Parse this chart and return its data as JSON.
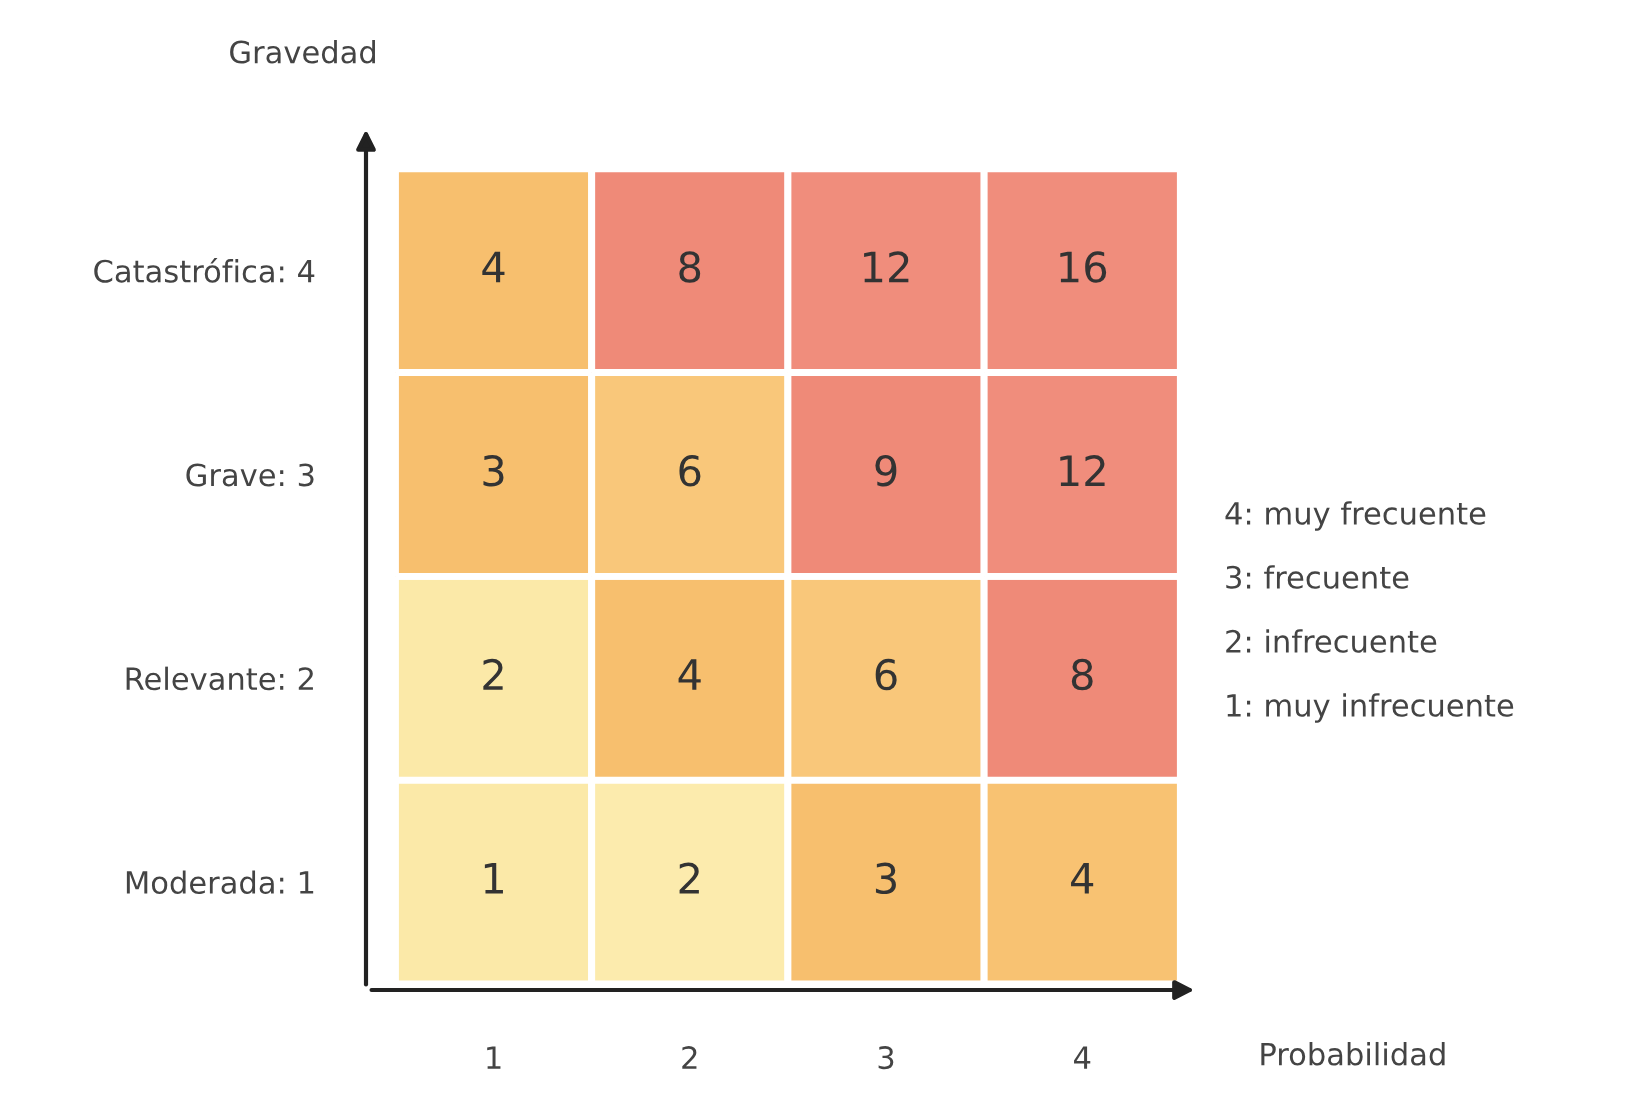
{
  "chart_data": {
    "type": "heatmap",
    "xlabel": "Probabilidad",
    "ylabel": "Gravedad",
    "categories": [
      "1",
      "2",
      "3",
      "4"
    ],
    "y_categories": [
      "Catastrófica: 4",
      "Grave: 3",
      "Relevante: 2",
      "Moderada: 1"
    ],
    "cells": [
      [
        4,
        8,
        12,
        16
      ],
      [
        3,
        6,
        9,
        12
      ],
      [
        2,
        4,
        6,
        8
      ],
      [
        1,
        2,
        3,
        4
      ]
    ],
    "colors": [
      [
        "#f7bf6e",
        "#ef8a78",
        "#f08d7c",
        "#f08d7c"
      ],
      [
        "#f7bf6e",
        "#f9c77a",
        "#ef8a78",
        "#f08d7c"
      ],
      [
        "#fbe9a8",
        "#f7bf6e",
        "#f9c77a",
        "#ef8a78"
      ],
      [
        "#fbe9a8",
        "#fcebad",
        "#f7bf6e",
        "#f8c272"
      ]
    ],
    "data_labels": true,
    "annotations": [
      "4: muy frecuente",
      "3: frecuente",
      "2: infrecuente",
      "1: muy infrecuente"
    ]
  }
}
